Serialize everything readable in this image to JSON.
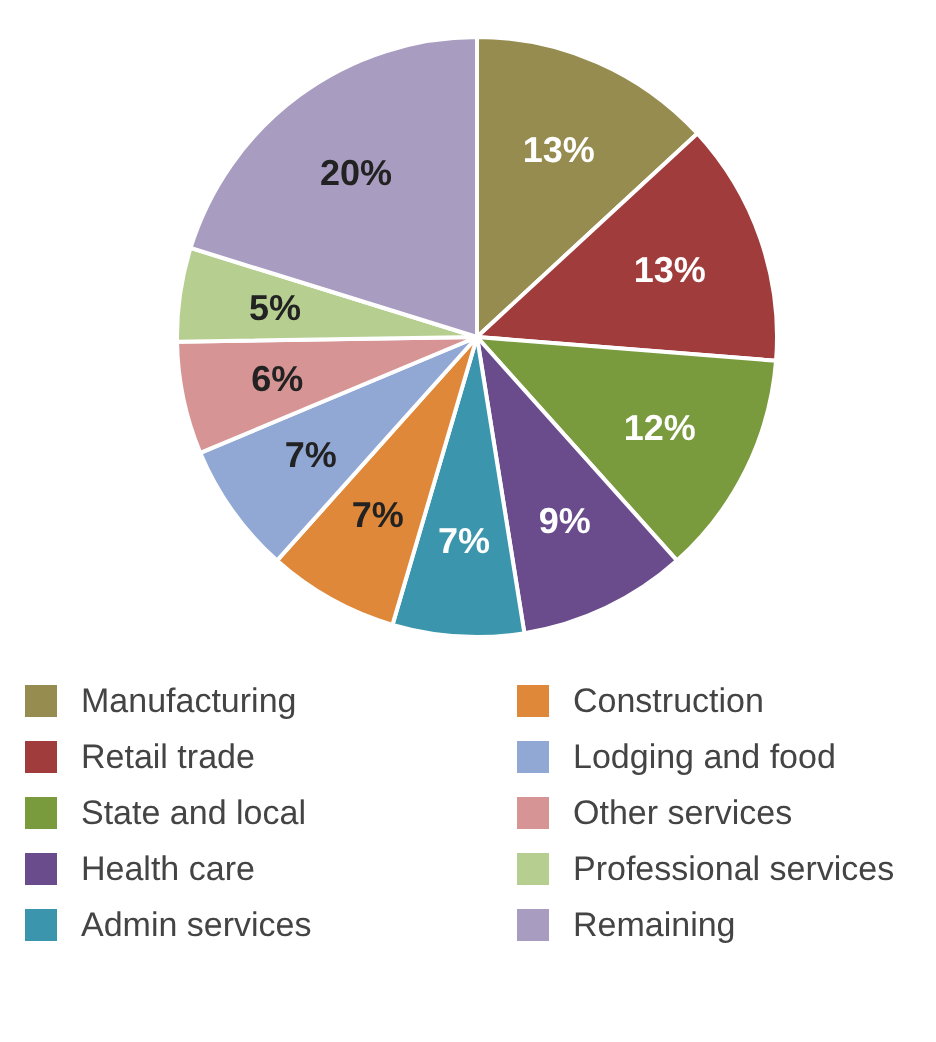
{
  "chart_data": {
    "type": "pie",
    "categories": [
      "Manufacturing",
      "Retail trade",
      "State and local",
      "Health care",
      "Admin services",
      "Construction",
      "Lodging and food",
      "Other services",
      "Professional services",
      "Remaining"
    ],
    "values": [
      13,
      13,
      12,
      9,
      7,
      7,
      7,
      6,
      5,
      20
    ],
    "colors": [
      "#968c4f",
      "#a03c3c",
      "#7a9a3e",
      "#6a4c8c",
      "#3b96ad",
      "#e0883a",
      "#91a8d4",
      "#d69494",
      "#b6cf91",
      "#a89cc0"
    ],
    "value_labels": [
      "13%",
      "13%",
      "12%",
      "9%",
      "7%",
      "7%",
      "7%",
      "6%",
      "5%",
      "20%"
    ],
    "legend": "bottom"
  }
}
